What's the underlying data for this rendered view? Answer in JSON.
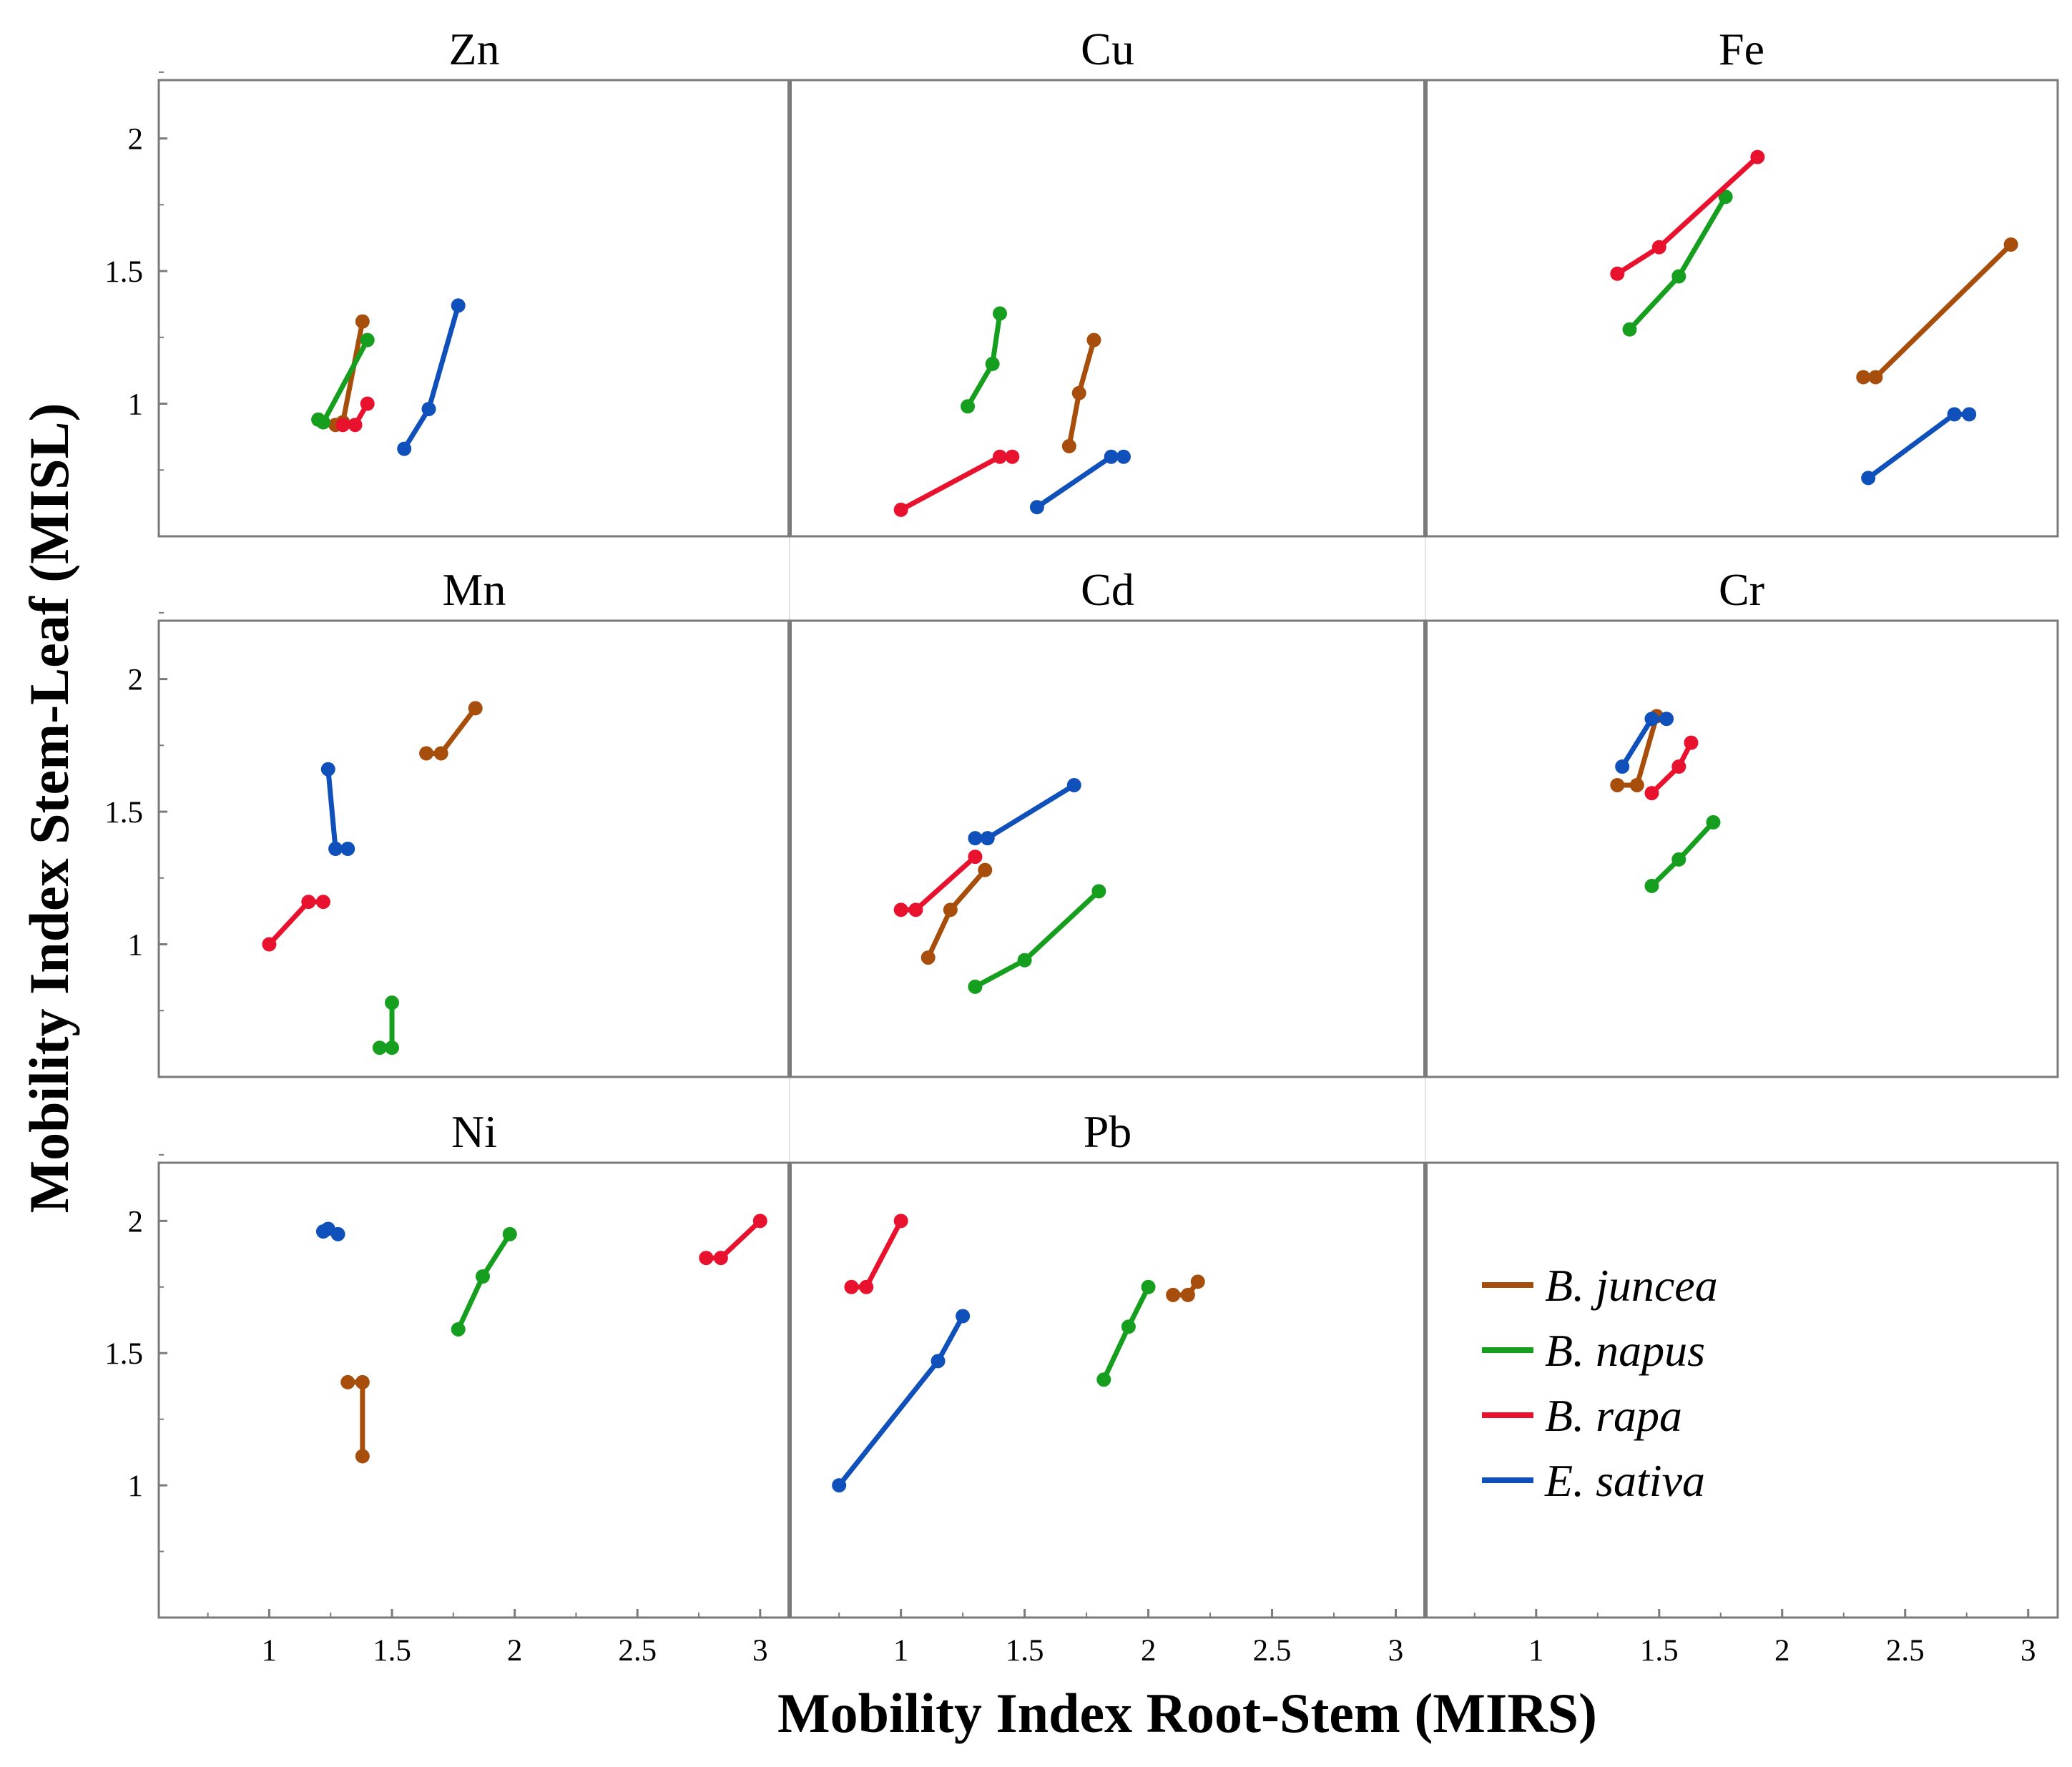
{
  "chart_data": {
    "type": "line",
    "xlabel": "Mobility Index Root-Stem (MIRS)",
    "ylabel": "Mobility Index Stem-Leaf (MISL)",
    "x_ticks": [
      "1",
      "1.5",
      "2",
      "2.5",
      "3"
    ],
    "y_ticks": [
      "1",
      "1.5",
      "2"
    ],
    "ylim": [
      0.5,
      2.22
    ],
    "legend": {
      "position": "bottom-right panel",
      "entries": [
        {
          "label": "B. juncea",
          "color": "#A84E0C"
        },
        {
          "label": "B. napus",
          "color": "#169E1E"
        },
        {
          "label": "B. rapa",
          "color": "#E8122F"
        },
        {
          "label": "E. sativa",
          "color": "#1050BA"
        }
      ]
    },
    "colors": {
      "B. juncea": "#A84E0C",
      "B. napus": "#169E1E",
      "B. rapa": "#E8122F",
      "E. sativa": "#1050BA"
    },
    "panels": [
      {
        "title": "Zn",
        "xlim": [
          0.55,
          3.12
        ],
        "series": [
          {
            "name": "B. juncea",
            "points": [
              [
                1.27,
                0.92
              ],
              [
                1.3,
                0.93
              ],
              [
                1.38,
                1.31
              ]
            ]
          },
          {
            "name": "B. napus",
            "points": [
              [
                1.2,
                0.94
              ],
              [
                1.22,
                0.93
              ],
              [
                1.4,
                1.24
              ]
            ]
          },
          {
            "name": "B. rapa",
            "points": [
              [
                1.3,
                0.92
              ],
              [
                1.35,
                0.92
              ],
              [
                1.4,
                1.0
              ]
            ]
          },
          {
            "name": "E. sativa",
            "points": [
              [
                1.55,
                0.83
              ],
              [
                1.65,
                0.98
              ],
              [
                1.77,
                1.37
              ]
            ]
          }
        ]
      },
      {
        "title": "Cu",
        "xlim": [
          0.55,
          3.12
        ],
        "series": [
          {
            "name": "B. juncea",
            "points": [
              [
                1.68,
                0.84
              ],
              [
                1.72,
                1.04
              ],
              [
                1.78,
                1.24
              ]
            ]
          },
          {
            "name": "B. napus",
            "points": [
              [
                1.27,
                0.99
              ],
              [
                1.37,
                1.15
              ],
              [
                1.4,
                1.34
              ]
            ]
          },
          {
            "name": "B. rapa",
            "points": [
              [
                1.0,
                0.6
              ],
              [
                1.4,
                0.8
              ],
              [
                1.45,
                0.8
              ]
            ]
          },
          {
            "name": "E. sativa",
            "points": [
              [
                1.55,
                0.61
              ],
              [
                1.85,
                0.8
              ],
              [
                1.9,
                0.8
              ]
            ]
          }
        ]
      },
      {
        "title": "Fe",
        "xlim": [
          0.55,
          3.12
        ],
        "series": [
          {
            "name": "B. juncea",
            "points": [
              [
                2.33,
                1.1
              ],
              [
                2.38,
                1.1
              ],
              [
                2.93,
                1.6
              ]
            ]
          },
          {
            "name": "B. napus",
            "points": [
              [
                1.38,
                1.28
              ],
              [
                1.58,
                1.48
              ],
              [
                1.77,
                1.78
              ]
            ]
          },
          {
            "name": "B. rapa",
            "points": [
              [
                1.33,
                1.49
              ],
              [
                1.5,
                1.59
              ],
              [
                1.9,
                1.93
              ]
            ]
          },
          {
            "name": "E. sativa",
            "points": [
              [
                2.35,
                0.72
              ],
              [
                2.7,
                0.96
              ],
              [
                2.76,
                0.96
              ]
            ]
          }
        ]
      },
      {
        "title": "Mn",
        "xlim": [
          0.55,
          3.12
        ],
        "series": [
          {
            "name": "B. juncea",
            "points": [
              [
                1.64,
                1.72
              ],
              [
                1.7,
                1.72
              ],
              [
                1.84,
                1.89
              ]
            ]
          },
          {
            "name": "B. napus",
            "points": [
              [
                1.45,
                0.61
              ],
              [
                1.5,
                0.61
              ],
              [
                1.5,
                0.78
              ]
            ]
          },
          {
            "name": "B. rapa",
            "points": [
              [
                1.0,
                1.0
              ],
              [
                1.16,
                1.16
              ],
              [
                1.22,
                1.16
              ]
            ]
          },
          {
            "name": "E. sativa",
            "points": [
              [
                1.24,
                1.66
              ],
              [
                1.27,
                1.36
              ],
              [
                1.32,
                1.36
              ]
            ]
          }
        ]
      },
      {
        "title": "Cd",
        "xlim": [
          0.55,
          3.12
        ],
        "series": [
          {
            "name": "B. juncea",
            "points": [
              [
                1.11,
                0.95
              ],
              [
                1.2,
                1.13
              ],
              [
                1.34,
                1.28
              ]
            ]
          },
          {
            "name": "B. napus",
            "points": [
              [
                1.3,
                0.84
              ],
              [
                1.5,
                0.94
              ],
              [
                1.8,
                1.2
              ]
            ]
          },
          {
            "name": "B. rapa",
            "points": [
              [
                1.0,
                1.13
              ],
              [
                1.06,
                1.13
              ],
              [
                1.3,
                1.33
              ]
            ]
          },
          {
            "name": "E. sativa",
            "points": [
              [
                1.3,
                1.4
              ],
              [
                1.35,
                1.4
              ],
              [
                1.7,
                1.6
              ]
            ]
          }
        ]
      },
      {
        "title": "Cr",
        "xlim": [
          0.55,
          3.12
        ],
        "series": [
          {
            "name": "B. juncea",
            "points": [
              [
                1.33,
                1.6
              ],
              [
                1.41,
                1.6
              ],
              [
                1.49,
                1.86
              ]
            ]
          },
          {
            "name": "B. napus",
            "points": [
              [
                1.47,
                1.22
              ],
              [
                1.58,
                1.32
              ],
              [
                1.72,
                1.46
              ]
            ]
          },
          {
            "name": "B. rapa",
            "points": [
              [
                1.47,
                1.57
              ],
              [
                1.58,
                1.67
              ],
              [
                1.63,
                1.76
              ]
            ]
          },
          {
            "name": "E. sativa",
            "points": [
              [
                1.35,
                1.67
              ],
              [
                1.47,
                1.85
              ],
              [
                1.53,
                1.85
              ]
            ]
          }
        ]
      },
      {
        "title": "Ni",
        "xlim": [
          0.55,
          3.12
        ],
        "series": [
          {
            "name": "B. juncea",
            "points": [
              [
                1.32,
                1.39
              ],
              [
                1.38,
                1.39
              ],
              [
                1.38,
                1.11
              ]
            ]
          },
          {
            "name": "B. napus",
            "points": [
              [
                1.77,
                1.59
              ],
              [
                1.87,
                1.79
              ],
              [
                1.98,
                1.95
              ]
            ]
          },
          {
            "name": "B. rapa",
            "points": [
              [
                2.78,
                1.86
              ],
              [
                2.84,
                1.86
              ],
              [
                3.0,
                2.0
              ]
            ]
          },
          {
            "name": "E. sativa",
            "points": [
              [
                1.22,
                1.96
              ],
              [
                1.24,
                1.97
              ],
              [
                1.28,
                1.95
              ]
            ]
          }
        ]
      },
      {
        "title": "Pb",
        "xlim": [
          0.55,
          3.12
        ],
        "series": [
          {
            "name": "B. juncea",
            "points": [
              [
                2.1,
                1.72
              ],
              [
                2.16,
                1.72
              ],
              [
                2.2,
                1.77
              ]
            ]
          },
          {
            "name": "B. napus",
            "points": [
              [
                1.82,
                1.4
              ],
              [
                1.92,
                1.6
              ],
              [
                2.0,
                1.75
              ]
            ]
          },
          {
            "name": "B. rapa",
            "points": [
              [
                0.8,
                1.75
              ],
              [
                0.86,
                1.75
              ],
              [
                1.0,
                2.0
              ]
            ]
          },
          {
            "name": "E. sativa",
            "points": [
              [
                0.75,
                1.0
              ],
              [
                1.15,
                1.47
              ],
              [
                1.25,
                1.64
              ]
            ]
          }
        ]
      }
    ]
  }
}
